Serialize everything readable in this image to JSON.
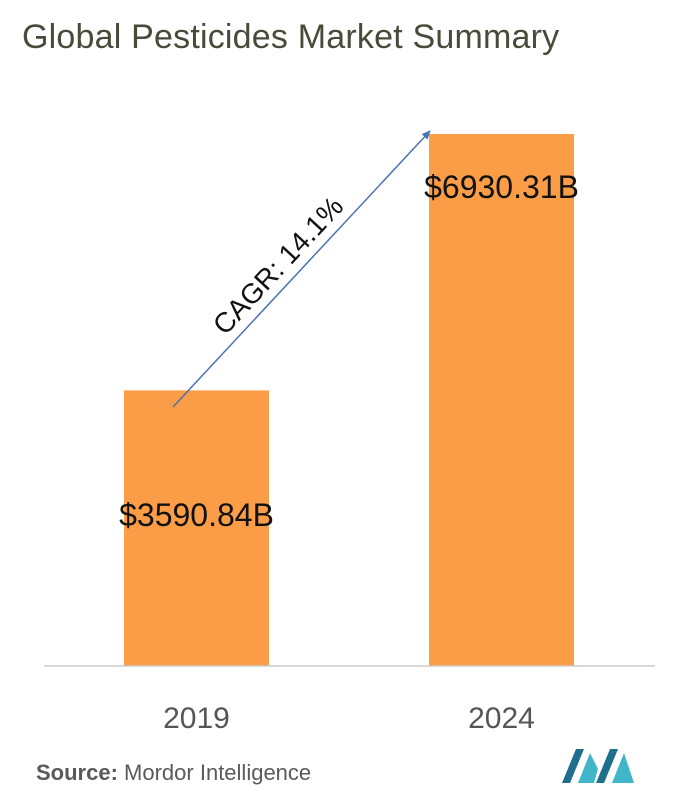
{
  "title": "Global Pesticides Market Summary",
  "source": {
    "label": "Source:",
    "name": "Mordor Intelligence"
  },
  "colors": {
    "bar": "#fb9d47",
    "arrow": "#4a72b0",
    "axis": "#cccccc",
    "logo_dark": "#1f6e8c",
    "logo_light": "#3fb6c9"
  },
  "chart_data": {
    "type": "bar",
    "categories": [
      "2019",
      "2024"
    ],
    "values": [
      3590.84,
      6930.31
    ],
    "data_labels": [
      "$3590.84B",
      "$6930.31B"
    ],
    "annotation": "CAGR: 14.1%",
    "ylim": [
      0,
      6930.31
    ],
    "xlabel": "",
    "ylabel": "",
    "grid": false
  }
}
